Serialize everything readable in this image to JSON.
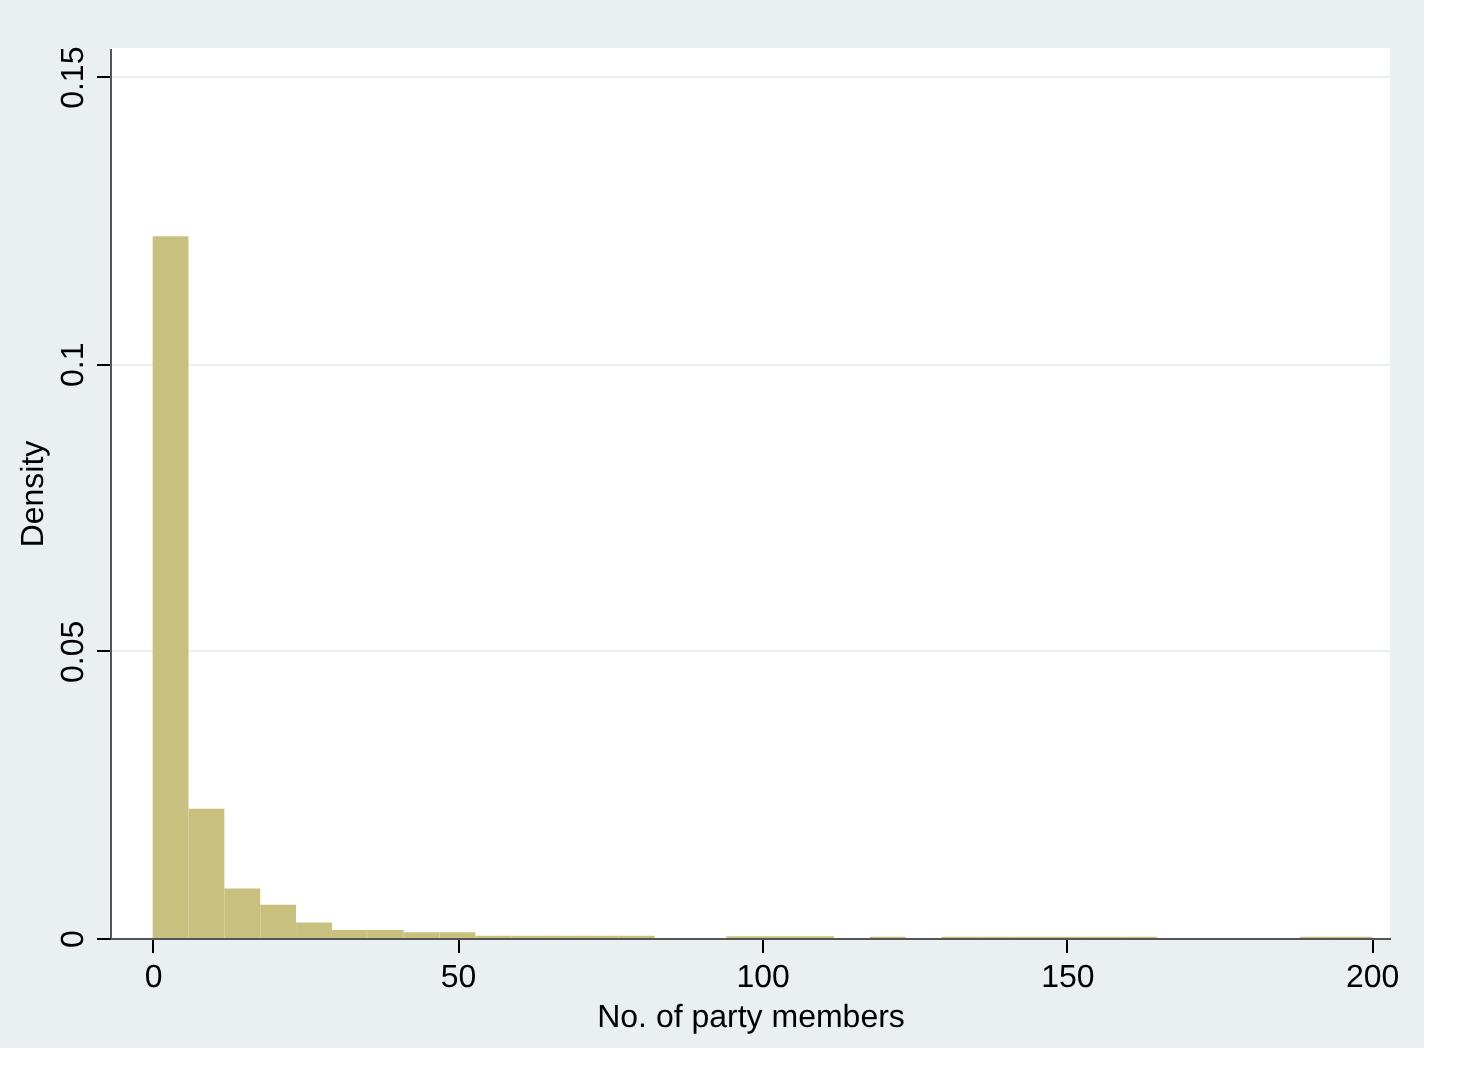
{
  "chart_data": {
    "type": "histogram",
    "xlabel": "No. of party members",
    "ylabel": "Density",
    "bins": [
      0,
      5.882,
      11.765,
      17.647,
      23.529,
      29.412,
      35.294,
      41.176,
      47.059,
      52.941,
      58.824,
      64.706,
      70.588,
      76.471,
      82.353,
      88.235,
      94.118,
      100,
      105.882,
      111.765,
      117.647,
      123.529,
      129.412,
      135.294,
      141.176,
      147.059,
      152.941,
      158.824,
      164.706,
      170.588,
      176.471,
      182.353,
      188.235,
      194.118,
      200
    ],
    "values": [
      0.1222,
      0.0225,
      0.0086,
      0.0058,
      0.0027,
      0.0014,
      0.0014,
      0.001,
      0.001,
      0.0004,
      0.0004,
      0.0004,
      0.0004,
      0.0004,
      0,
      0,
      0.0003,
      0.0003,
      0.0003,
      0,
      0.0002,
      0,
      0.0002,
      0.0002,
      0.0002,
      0.0002,
      0.0002,
      0.0002,
      0,
      0,
      0,
      0,
      0.0002,
      0.0002
    ],
    "color": "#c8c07e",
    "xlim": [
      -7,
      203
    ],
    "xticks": [
      0,
      50,
      100,
      150,
      200
    ],
    "ylim": [
      0,
      0.155
    ],
    "yticks": [
      0,
      0.05,
      0.1,
      0.15
    ],
    "grid": "y"
  }
}
